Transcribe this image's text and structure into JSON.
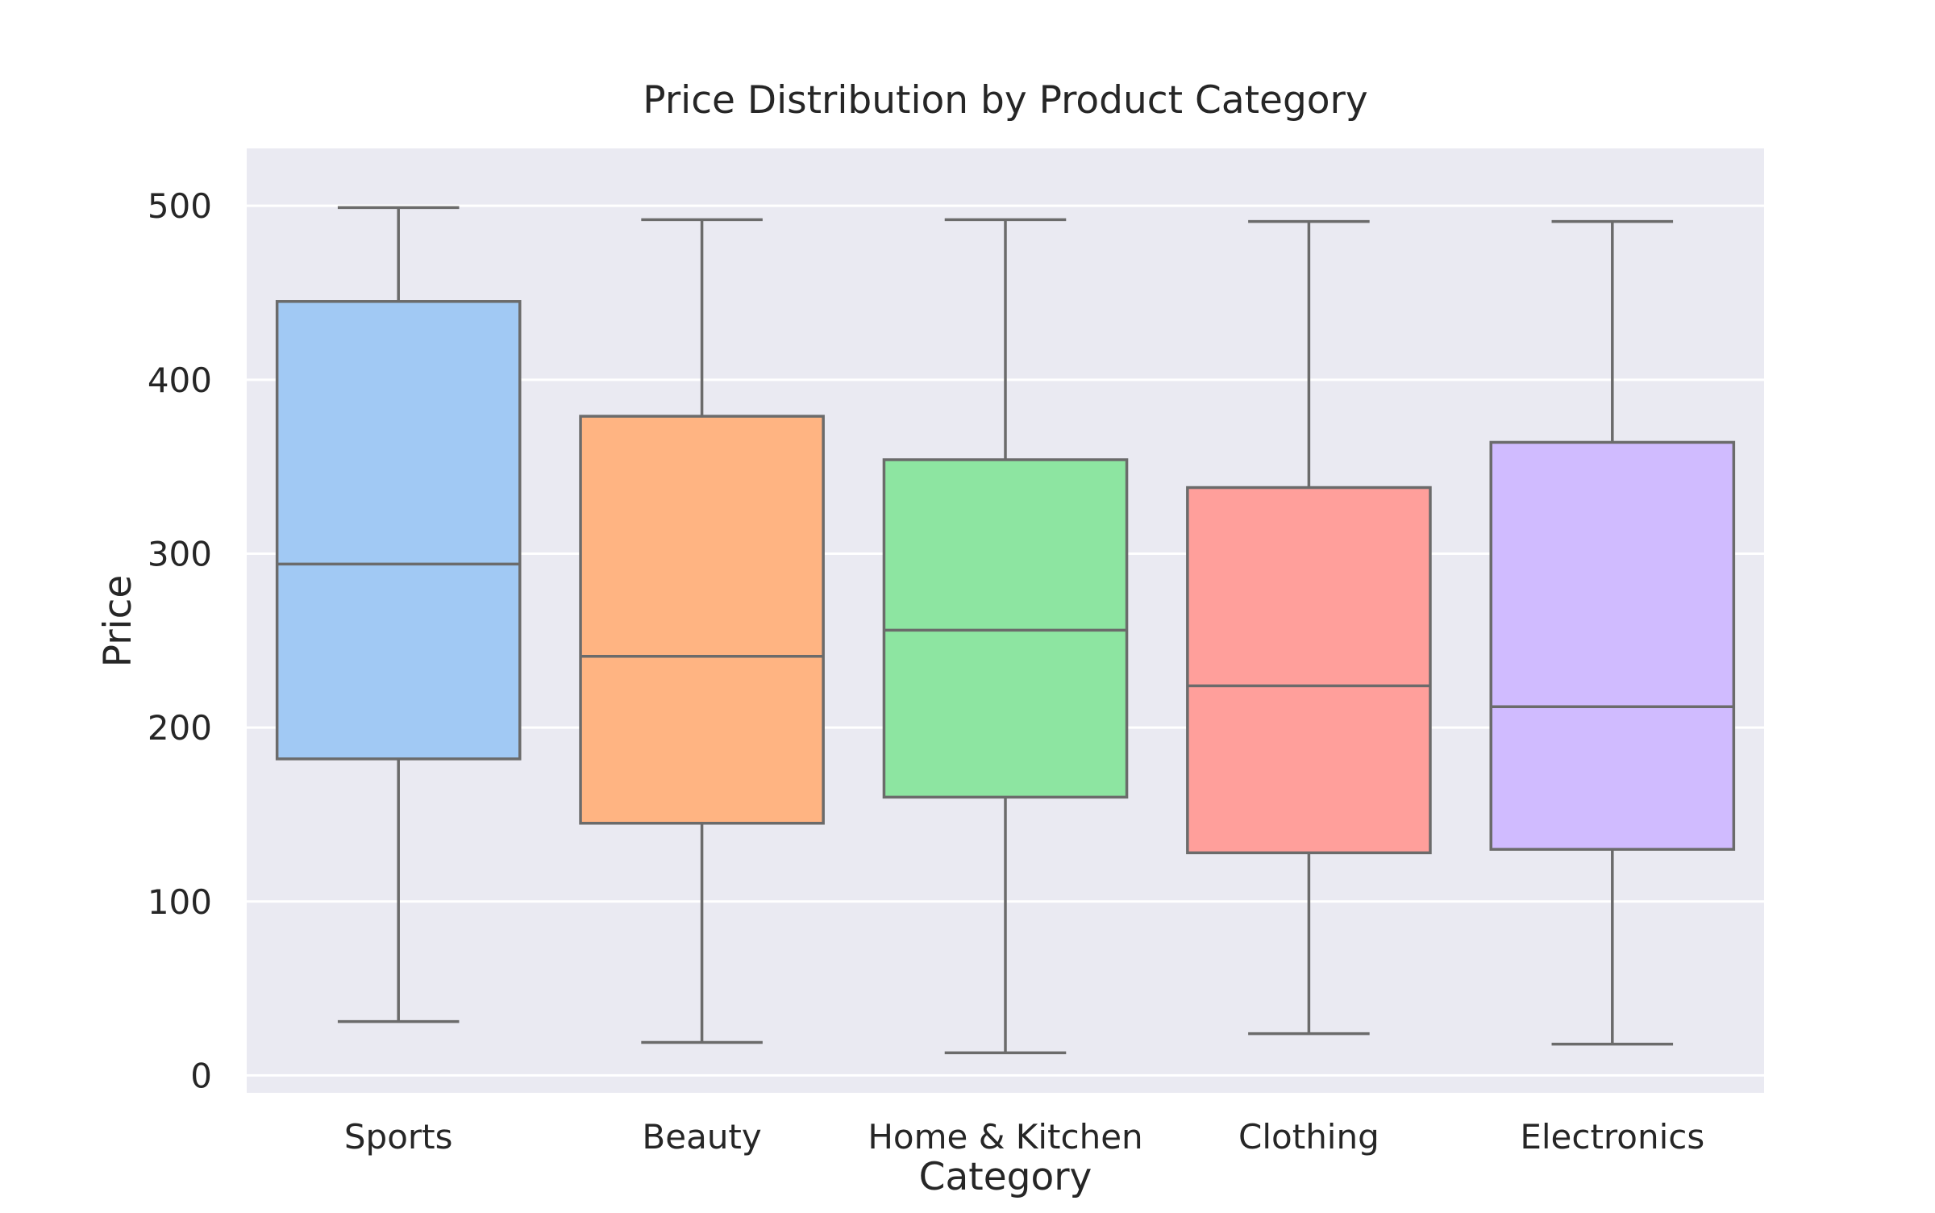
{
  "chart_data": {
    "type": "box",
    "title": "Price Distribution by Product Category",
    "xlabel": "Category",
    "ylabel": "Price",
    "ylim": [
      -10,
      533
    ],
    "yticks": [
      0,
      100,
      200,
      300,
      400,
      500
    ],
    "grid": true,
    "legend": "none",
    "categories": [
      "Sports",
      "Beauty",
      "Home & Kitchen",
      "Clothing",
      "Electronics"
    ],
    "colors": [
      "#a1c9f4",
      "#ffb482",
      "#8de5a1",
      "#ff9f9b",
      "#d0bbff"
    ],
    "boxes": [
      {
        "category": "Sports",
        "whisker_low": 31,
        "q1": 182,
        "median": 294,
        "q3": 445,
        "whisker_high": 499
      },
      {
        "category": "Beauty",
        "whisker_low": 19,
        "q1": 145,
        "median": 241,
        "q3": 379,
        "whisker_high": 492
      },
      {
        "category": "Home & Kitchen",
        "whisker_low": 13,
        "q1": 160,
        "median": 256,
        "q3": 354,
        "whisker_high": 492
      },
      {
        "category": "Clothing",
        "whisker_low": 24,
        "q1": 128,
        "median": 224,
        "q3": 338,
        "whisker_high": 491
      },
      {
        "category": "Electronics",
        "whisker_low": 18,
        "q1": 130,
        "median": 212,
        "q3": 364,
        "whisker_high": 491
      }
    ]
  }
}
